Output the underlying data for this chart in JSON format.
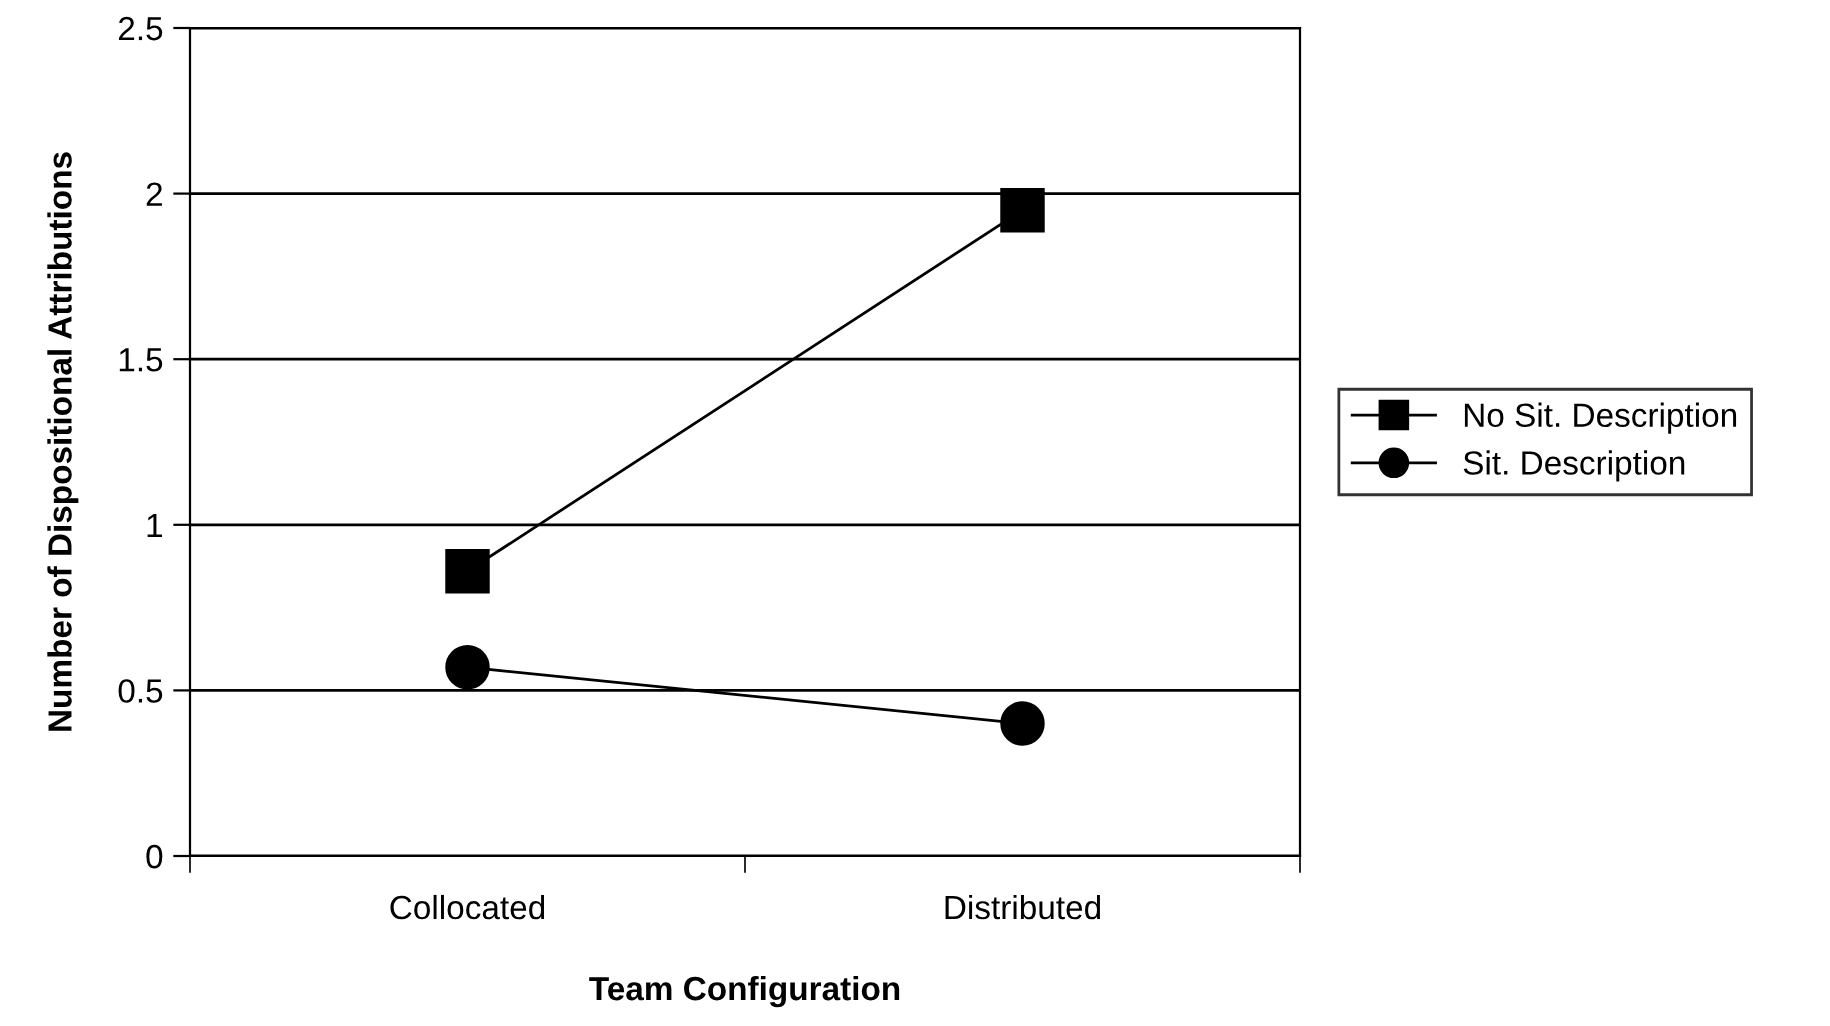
{
  "chart_data": {
    "type": "line",
    "xlabel": "Team Configuration",
    "ylabel": "Number of Dispositional Attributions",
    "categories": [
      "Collocated",
      "Distributed"
    ],
    "series": [
      {
        "name": "No Sit. Description",
        "color": "#000000",
        "marker": "square",
        "values": [
          0.86,
          1.95
        ]
      },
      {
        "name": "Sit. Description",
        "color": "#000000",
        "marker": "circle",
        "values": [
          0.57,
          0.4
        ]
      }
    ],
    "ylim": [
      0,
      2.5
    ],
    "yticks": [
      0,
      0.5,
      1,
      1.5,
      2,
      2.5
    ],
    "grid": "y",
    "legend": "right",
    "line_style": "solid"
  }
}
